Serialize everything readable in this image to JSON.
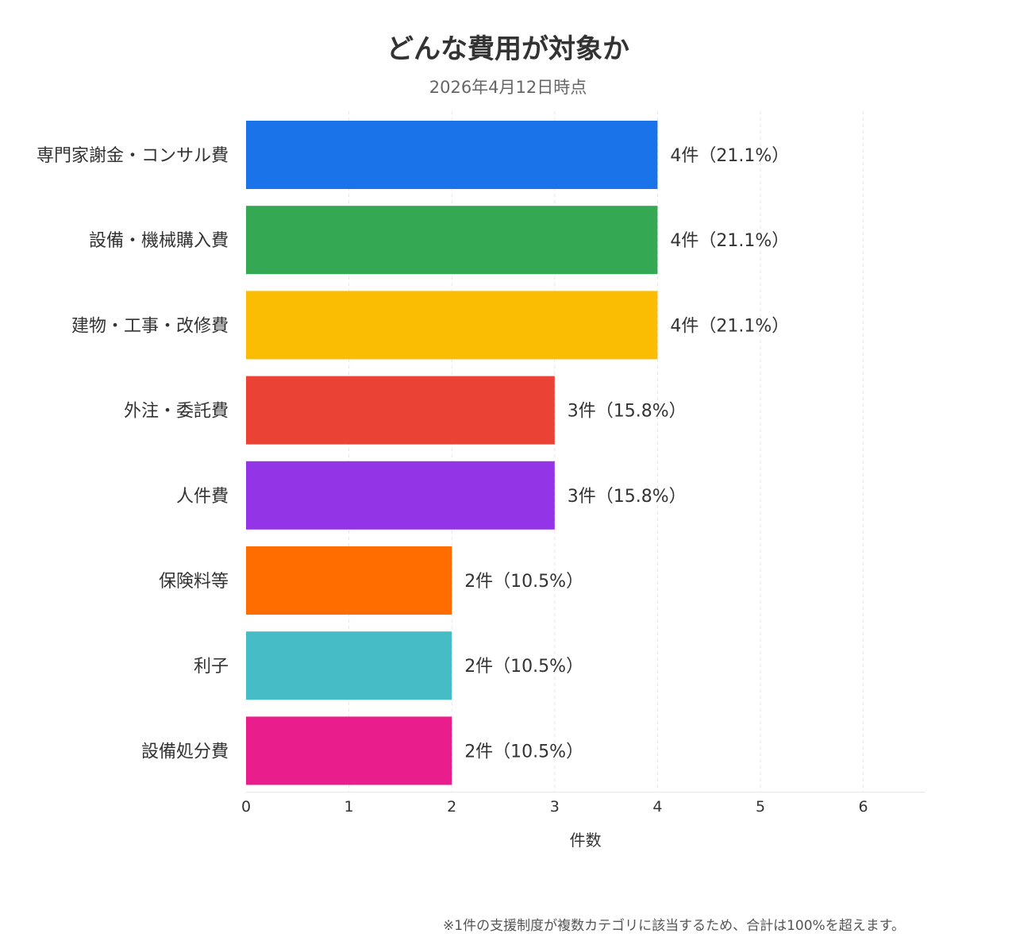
{
  "chart_data": {
    "type": "bar",
    "orientation": "horizontal",
    "title": "どんな費用が対象か",
    "subtitle": "2026年4月12日時点",
    "xlabel": "件数",
    "ylabel": "",
    "xlim": [
      0,
      6.6
    ],
    "x_ticks": [
      "0",
      "1",
      "2",
      "3",
      "4",
      "5",
      "6"
    ],
    "grid": "vertical-dashed",
    "categories": [
      "専門家謝金・コンサル費",
      "設備・機械購入費",
      "建物・工事・改修費",
      "外注・委託費",
      "人件費",
      "保険料等",
      "利子",
      "設備処分費"
    ],
    "values": [
      4,
      4,
      4,
      3,
      3,
      2,
      2,
      2
    ],
    "data_labels": [
      "4件（21.1%）",
      "4件（21.1%）",
      "4件（21.1%）",
      "3件（15.8%）",
      "3件（15.8%）",
      "2件（10.5%）",
      "2件（10.5%）",
      "2件（10.5%）"
    ],
    "colors": [
      "#1a73e8",
      "#34a853",
      "#fbbc04",
      "#ea4335",
      "#9334e6",
      "#ff6d01",
      "#46bdc6",
      "#e91e8c"
    ]
  },
  "footnote": "※1件の支援制度が複数カテゴリに該当するため、合計は100%を超えます。"
}
